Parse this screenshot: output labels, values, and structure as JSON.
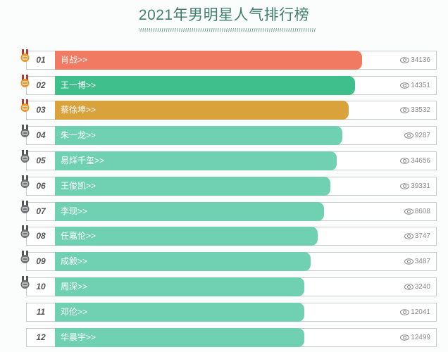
{
  "title": "2021年男明星人气排行榜",
  "colors": {
    "first": "#f07a62",
    "second": "#3fbf8c",
    "third": "#d9a23b",
    "rest": "#6fd1b2",
    "medal_gold": "#e8962c",
    "medal_grey": "#6e7174"
  },
  "rows": [
    {
      "rank": "01",
      "name": "肖战>>",
      "views": "34136",
      "fill_pct": 75,
      "medal": "gold",
      "color": "#f07a62"
    },
    {
      "rank": "02",
      "name": "王一博>>",
      "views": "14351",
      "fill_pct": 73.4,
      "medal": "gold",
      "color": "#3fbf8c"
    },
    {
      "rank": "03",
      "name": "蔡徐坤>>",
      "views": "33532",
      "fill_pct": 71.8,
      "medal": "gold",
      "color": "#d9a23b"
    },
    {
      "rank": "04",
      "name": "朱一龙>>",
      "views": "9287",
      "fill_pct": 70.3,
      "medal": "grey",
      "color": "#6fd1b2"
    },
    {
      "rank": "05",
      "name": "易烊千玺>>",
      "views": "34656",
      "fill_pct": 68.8,
      "medal": "grey",
      "color": "#6fd1b2"
    },
    {
      "rank": "06",
      "name": "王俊凯>>",
      "views": "39331",
      "fill_pct": 67.3,
      "medal": "grey",
      "color": "#6fd1b2"
    },
    {
      "rank": "07",
      "name": "李现>>",
      "views": "8608",
      "fill_pct": 65.7,
      "medal": "grey",
      "color": "#6fd1b2"
    },
    {
      "rank": "08",
      "name": "任嘉伦>>",
      "views": "3747",
      "fill_pct": 64.2,
      "medal": "grey",
      "color": "#6fd1b2"
    },
    {
      "rank": "09",
      "name": "成毅>>",
      "views": "3487",
      "fill_pct": 62.5,
      "medal": "grey",
      "color": "#6fd1b2"
    },
    {
      "rank": "10",
      "name": "周深>>",
      "views": "3240",
      "fill_pct": 61,
      "medal": "grey",
      "color": "#6fd1b2"
    },
    {
      "rank": "11",
      "name": "邓伦>>",
      "views": "12041",
      "fill_pct": 61,
      "medal": "none",
      "color": "#6fd1b2"
    },
    {
      "rank": "12",
      "name": "华晨宇>>",
      "views": "12499",
      "fill_pct": 61,
      "medal": "none",
      "color": "#6fd1b2"
    }
  ],
  "icons": {
    "views": "eye-icon",
    "rank": "medal-icon"
  }
}
